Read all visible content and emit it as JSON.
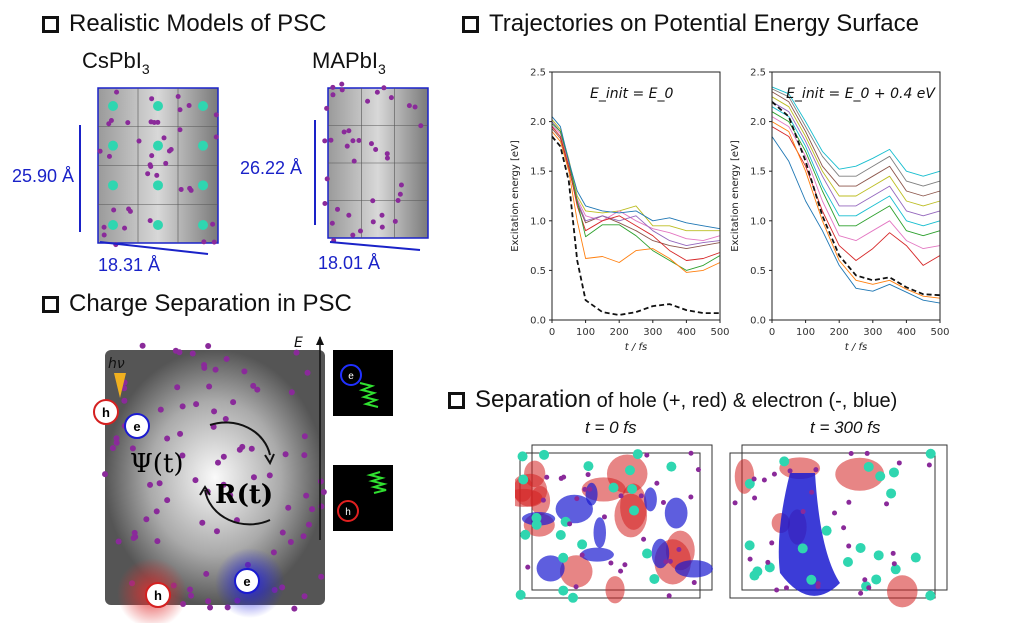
{
  "sections": {
    "models": {
      "title": "Realistic Models of PSC",
      "cs_label": "CsPbI",
      "cs_sub": "3",
      "ma_label": "MAPbI",
      "ma_sub": "3",
      "cs_height": "25.90 Å",
      "cs_width": "18.31 Å",
      "ma_height": "26.22 Å",
      "ma_width": "18.01 Å"
    },
    "charge": {
      "title": "Charge Separation in PSC",
      "hv": "hν",
      "energy_axis": "E",
      "psi": "Ψ(t)",
      "r": "R(t)",
      "hole": "h",
      "electron": "e"
    },
    "trajectories": {
      "title": "Trajectories on Potential Energy Surface"
    },
    "separation": {
      "title_big": "Separation",
      "title_rest": " of hole (+, red)  & electron (-, blue)",
      "t0": "t = 0 fs",
      "t300": "t = 300 fs"
    }
  },
  "colors": {
    "dimension_blue": "#1a22c8",
    "hole_red": "#d42020",
    "electron_blue": "#1a1ad0",
    "atom_teal": "#2fd6b0",
    "iodine_purple": "#8a2a9a"
  },
  "chart_data": [
    {
      "type": "line",
      "annotation": "E_init = E_0",
      "xlabel": "t / fs",
      "ylabel": "Excitation energy [eV]",
      "xlim": [
        0,
        500
      ],
      "ylim": [
        0,
        2.5
      ],
      "xticks": [
        "0",
        "100",
        "200",
        "300",
        "400",
        "500"
      ],
      "yticks": [
        "0.0",
        "0.5",
        "1.0",
        "1.5",
        "2.0",
        "2.5"
      ],
      "grid": false,
      "x": [
        0,
        25,
        50,
        75,
        100,
        150,
        200,
        250,
        300,
        350,
        400,
        450,
        500
      ],
      "series": [
        {
          "name": "average",
          "style": "dashed",
          "color": "#111111",
          "values": [
            1.85,
            1.75,
            1.4,
            0.6,
            0.2,
            0.08,
            0.05,
            0.08,
            0.14,
            0.16,
            0.1,
            0.07,
            0.07
          ]
        },
        {
          "name": "traj1",
          "color": "#1f77b4",
          "values": [
            2.05,
            1.95,
            1.6,
            1.3,
            1.15,
            1.1,
            1.08,
            1.1,
            1.0,
            1.03,
            0.98,
            0.95,
            0.92
          ]
        },
        {
          "name": "traj2",
          "color": "#ff7f0e",
          "values": [
            1.9,
            1.8,
            1.5,
            1.0,
            0.62,
            0.64,
            0.58,
            0.7,
            0.72,
            0.62,
            0.48,
            0.5,
            0.58
          ]
        },
        {
          "name": "traj3",
          "color": "#2ca02c",
          "values": [
            1.98,
            1.9,
            1.6,
            1.2,
            0.84,
            0.96,
            0.96,
            0.85,
            0.7,
            0.6,
            0.5,
            0.55,
            0.65
          ]
        },
        {
          "name": "traj4",
          "color": "#d62728",
          "values": [
            1.95,
            1.85,
            1.55,
            1.15,
            0.9,
            1.0,
            1.05,
            0.95,
            0.85,
            0.7,
            0.6,
            0.62,
            0.68
          ]
        },
        {
          "name": "traj5",
          "color": "#9467bd",
          "values": [
            2.0,
            1.9,
            1.6,
            1.2,
            1.0,
            1.05,
            1.0,
            1.05,
            0.9,
            0.8,
            0.75,
            0.78,
            0.8
          ]
        },
        {
          "name": "traj6",
          "color": "#e377c2",
          "values": [
            1.96,
            1.88,
            1.58,
            1.22,
            1.05,
            1.0,
            1.1,
            1.0,
            0.92,
            0.88,
            0.82,
            0.8,
            0.85
          ]
        },
        {
          "name": "traj7",
          "color": "#bcbd22",
          "values": [
            2.02,
            1.92,
            1.62,
            1.25,
            1.1,
            1.08,
            1.1,
            1.15,
            0.95,
            0.95,
            0.9,
            0.9,
            0.9
          ]
        },
        {
          "name": "traj8",
          "color": "#8c564b",
          "values": [
            1.93,
            1.83,
            1.53,
            1.18,
            0.98,
            1.05,
            0.98,
            0.9,
            0.8,
            0.75,
            0.72,
            0.75,
            0.78
          ]
        }
      ]
    },
    {
      "type": "line",
      "annotation": "E_init = E_0 + 0.4 eV",
      "xlabel": "t / fs",
      "ylabel": "Excitation energy [eV]",
      "xlim": [
        0,
        500
      ],
      "ylim": [
        0,
        2.5
      ],
      "xticks": [
        "0",
        "100",
        "200",
        "300",
        "400",
        "500"
      ],
      "yticks": [
        "0.0",
        "0.5",
        "1.0",
        "1.5",
        "2.0",
        "2.5"
      ],
      "grid": false,
      "x": [
        0,
        50,
        100,
        150,
        200,
        250,
        300,
        350,
        400,
        450,
        500
      ],
      "series": [
        {
          "name": "average",
          "style": "dashed",
          "color": "#111111",
          "values": [
            2.2,
            2.05,
            1.6,
            1.05,
            0.65,
            0.45,
            0.4,
            0.43,
            0.33,
            0.26,
            0.25
          ]
        },
        {
          "name": "traj1",
          "color": "#1f77b4",
          "values": [
            1.85,
            1.6,
            1.2,
            0.9,
            0.55,
            0.32,
            0.29,
            0.36,
            0.28,
            0.2,
            0.17
          ]
        },
        {
          "name": "traj2",
          "color": "#ff7f0e",
          "values": [
            2.0,
            1.9,
            1.5,
            1.0,
            0.6,
            0.4,
            0.36,
            0.4,
            0.31,
            0.24,
            0.22
          ]
        },
        {
          "name": "traj3",
          "color": "#d62728",
          "values": [
            1.95,
            1.85,
            1.55,
            1.1,
            0.75,
            0.6,
            0.72,
            0.88,
            0.75,
            0.55,
            0.65
          ]
        },
        {
          "name": "traj4",
          "color": "#e377c2",
          "values": [
            2.05,
            1.95,
            1.65,
            1.2,
            0.85,
            0.8,
            0.9,
            1.0,
            0.8,
            0.72,
            0.75
          ]
        },
        {
          "name": "traj5",
          "color": "#2ca02c",
          "values": [
            2.1,
            2.0,
            1.7,
            1.3,
            0.95,
            0.95,
            1.05,
            1.15,
            0.9,
            0.85,
            0.9
          ]
        },
        {
          "name": "traj6",
          "color": "#17becf",
          "values": [
            2.15,
            2.05,
            1.75,
            1.35,
            1.05,
            1.05,
            1.15,
            1.25,
            1.0,
            0.95,
            1.0
          ]
        },
        {
          "name": "traj7",
          "color": "#9467bd",
          "values": [
            2.2,
            2.1,
            1.8,
            1.45,
            1.15,
            1.15,
            1.25,
            1.35,
            1.1,
            1.05,
            1.1
          ]
        },
        {
          "name": "traj8",
          "color": "#bcbd22",
          "values": [
            2.25,
            2.15,
            1.85,
            1.5,
            1.25,
            1.25,
            1.35,
            1.45,
            1.2,
            1.15,
            1.2
          ]
        },
        {
          "name": "traj9",
          "color": "#8c564b",
          "values": [
            2.3,
            2.2,
            1.9,
            1.55,
            1.35,
            1.35,
            1.45,
            1.55,
            1.3,
            1.25,
            1.3
          ]
        },
        {
          "name": "traj10",
          "color": "#7f7f7f",
          "values": [
            2.33,
            2.25,
            1.95,
            1.65,
            1.45,
            1.45,
            1.55,
            1.65,
            1.4,
            1.35,
            1.4
          ]
        },
        {
          "name": "traj11",
          "color": "#17becf",
          "values": [
            2.35,
            2.28,
            2.0,
            1.7,
            1.52,
            1.55,
            1.63,
            1.72,
            1.5,
            1.45,
            1.5
          ]
        }
      ]
    }
  ]
}
